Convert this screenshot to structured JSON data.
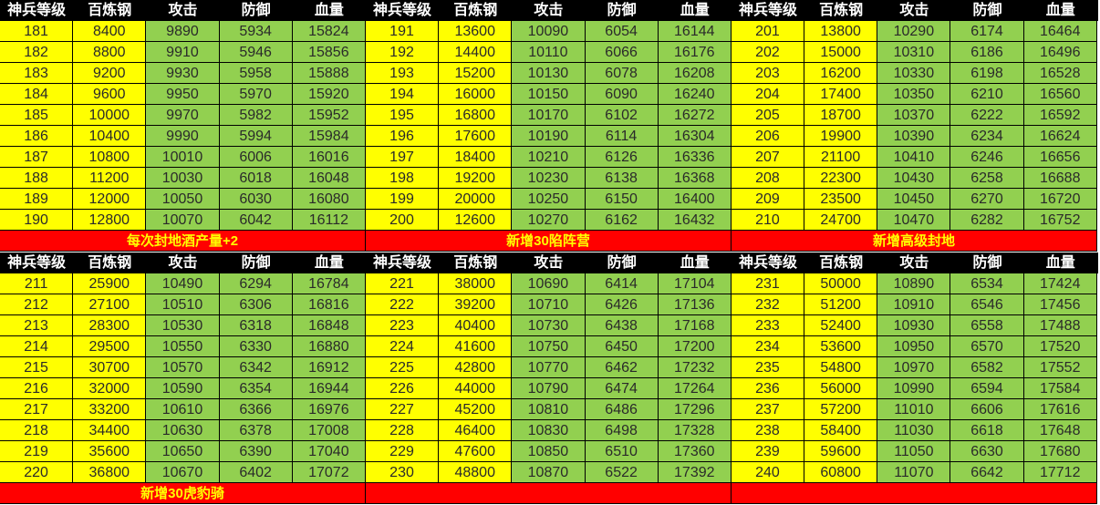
{
  "headers": [
    "神兵等级",
    "百炼钢",
    "攻击",
    "防御",
    "血量"
  ],
  "colors": {
    "header_bg": "#000000",
    "level_cols": "#FFFF00",
    "stat_cols": "#92D050",
    "banner_bg": "#FF0000",
    "banner_text": "#FFFF00"
  },
  "sections": [
    {
      "blocks": [
        [
          [
            181,
            8400,
            9890,
            5934,
            15824
          ],
          [
            182,
            8800,
            9910,
            5946,
            15856
          ],
          [
            183,
            9200,
            9930,
            5958,
            15888
          ],
          [
            184,
            9600,
            9950,
            5970,
            15920
          ],
          [
            185,
            10000,
            9970,
            5982,
            15952
          ],
          [
            186,
            10400,
            9990,
            5994,
            15984
          ],
          [
            187,
            10800,
            10010,
            6006,
            16016
          ],
          [
            188,
            11200,
            10030,
            6018,
            16048
          ],
          [
            189,
            12000,
            10050,
            6030,
            16080
          ],
          [
            190,
            12800,
            10070,
            6042,
            16112
          ]
        ],
        [
          [
            191,
            13600,
            10090,
            6054,
            16144
          ],
          [
            192,
            14400,
            10110,
            6066,
            16176
          ],
          [
            193,
            15200,
            10130,
            6078,
            16208
          ],
          [
            194,
            16000,
            10150,
            6090,
            16240
          ],
          [
            195,
            16800,
            10170,
            6102,
            16272
          ],
          [
            196,
            17600,
            10190,
            6114,
            16304
          ],
          [
            197,
            18400,
            10210,
            6126,
            16336
          ],
          [
            198,
            19200,
            10230,
            6138,
            16368
          ],
          [
            199,
            20000,
            10250,
            6150,
            16400
          ],
          [
            200,
            12600,
            10270,
            6162,
            16432
          ]
        ],
        [
          [
            201,
            13800,
            10290,
            6174,
            16464
          ],
          [
            202,
            15000,
            10310,
            6186,
            16496
          ],
          [
            203,
            16200,
            10330,
            6198,
            16528
          ],
          [
            204,
            17400,
            10350,
            6210,
            16560
          ],
          [
            205,
            18700,
            10370,
            6222,
            16592
          ],
          [
            206,
            19900,
            10390,
            6234,
            16624
          ],
          [
            207,
            21100,
            10410,
            6246,
            16656
          ],
          [
            208,
            22300,
            10430,
            6258,
            16688
          ],
          [
            209,
            23500,
            10450,
            6270,
            16720
          ],
          [
            210,
            24700,
            10470,
            6282,
            16752
          ]
        ]
      ],
      "banners": [
        "每次封地酒产量+2",
        "新增30陷阵营",
        "新增高级封地"
      ]
    },
    {
      "blocks": [
        [
          [
            211,
            25900,
            10490,
            6294,
            16784
          ],
          [
            212,
            27100,
            10510,
            6306,
            16816
          ],
          [
            213,
            28300,
            10530,
            6318,
            16848
          ],
          [
            214,
            29500,
            10550,
            6330,
            16880
          ],
          [
            215,
            30700,
            10570,
            6342,
            16912
          ],
          [
            216,
            32000,
            10590,
            6354,
            16944
          ],
          [
            217,
            33200,
            10610,
            6366,
            16976
          ],
          [
            218,
            34400,
            10630,
            6378,
            17008
          ],
          [
            219,
            35600,
            10650,
            6390,
            17040
          ],
          [
            220,
            36800,
            10670,
            6402,
            17072
          ]
        ],
        [
          [
            221,
            38000,
            10690,
            6414,
            17104
          ],
          [
            222,
            39200,
            10710,
            6426,
            17136
          ],
          [
            223,
            40400,
            10730,
            6438,
            17168
          ],
          [
            224,
            41600,
            10750,
            6450,
            17200
          ],
          [
            225,
            42800,
            10770,
            6462,
            17232
          ],
          [
            226,
            44000,
            10790,
            6474,
            17264
          ],
          [
            227,
            45200,
            10810,
            6486,
            17296
          ],
          [
            228,
            46400,
            10830,
            6498,
            17328
          ],
          [
            229,
            47600,
            10850,
            6510,
            17360
          ],
          [
            230,
            48800,
            10870,
            6522,
            17392
          ]
        ],
        [
          [
            231,
            50000,
            10890,
            6534,
            17424
          ],
          [
            232,
            51200,
            10910,
            6546,
            17456
          ],
          [
            233,
            52400,
            10930,
            6558,
            17488
          ],
          [
            234,
            53600,
            10950,
            6570,
            17520
          ],
          [
            235,
            54800,
            10970,
            6582,
            17552
          ],
          [
            236,
            56000,
            10990,
            6594,
            17584
          ],
          [
            237,
            57200,
            11010,
            6606,
            17616
          ],
          [
            238,
            58400,
            11030,
            6618,
            17648
          ],
          [
            239,
            59600,
            11050,
            6630,
            17680
          ],
          [
            240,
            60800,
            11070,
            6642,
            17712
          ]
        ]
      ],
      "banners": [
        "新增30虎豹骑",
        "",
        ""
      ]
    }
  ]
}
